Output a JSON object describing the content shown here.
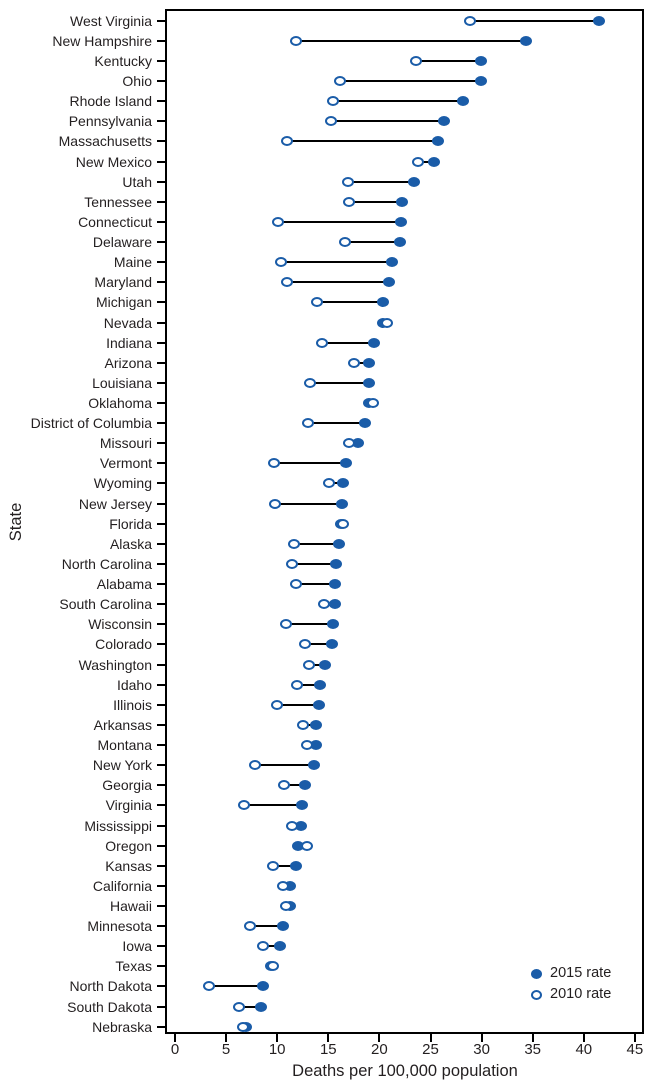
{
  "figure": {
    "x_axis_label": "Deaths per 100,000 population",
    "y_axis_label": "State",
    "x_ticks": [
      0,
      5,
      10,
      15,
      20,
      25,
      30,
      35,
      40,
      45
    ]
  },
  "legend": {
    "filled_label": "2015 rate",
    "open_label": "2010 rate"
  },
  "colors": {
    "marker_blue": "#1a5ca8",
    "connector_black": "#000000",
    "text": "#231f20"
  },
  "chart_data": {
    "type": "scatter",
    "subtype": "dumbbell",
    "title": "",
    "xlabel": "Deaths per 100,000 population",
    "ylabel": "State",
    "xlim": [
      0,
      45
    ],
    "grid": false,
    "legend_position": "bottom-right",
    "categories": [
      "West Virginia",
      "New Hampshire",
      "Kentucky",
      "Ohio",
      "Rhode Island",
      "Pennsylvania",
      "Massachusetts",
      "New Mexico",
      "Utah",
      "Tennessee",
      "Connecticut",
      "Delaware",
      "Maine",
      "Maryland",
      "Michigan",
      "Nevada",
      "Indiana",
      "Arizona",
      "Louisiana",
      "Oklahoma",
      "District of Columbia",
      "Missouri",
      "Vermont",
      "Wyoming",
      "New Jersey",
      "Florida",
      "Alaska",
      "North Carolina",
      "Alabama",
      "South Carolina",
      "Wisconsin",
      "Colorado",
      "Washington",
      "Idaho",
      "Illinois",
      "Arkansas",
      "Montana",
      "New York",
      "Georgia",
      "Virginia",
      "Mississippi",
      "Oregon",
      "Kansas",
      "California",
      "Hawaii",
      "Minnesota",
      "Iowa",
      "Texas",
      "North Dakota",
      "South Dakota",
      "Nebraska"
    ],
    "series": [
      {
        "name": "2015 rate",
        "marker": "filled",
        "values": [
          41.5,
          34.3,
          29.9,
          29.9,
          28.2,
          26.3,
          25.7,
          25.3,
          23.4,
          22.2,
          22.1,
          22.0,
          21.2,
          20.9,
          20.4,
          20.4,
          19.5,
          19.0,
          19.0,
          19.0,
          18.6,
          17.9,
          16.7,
          16.4,
          16.3,
          16.2,
          16.0,
          15.8,
          15.7,
          15.7,
          15.5,
          15.4,
          14.7,
          14.2,
          14.1,
          13.8,
          13.8,
          13.6,
          12.7,
          12.4,
          12.3,
          12.0,
          11.8,
          11.3,
          11.3,
          10.6,
          10.3,
          9.4,
          8.6,
          8.4,
          6.9
        ]
      },
      {
        "name": "2010 rate",
        "marker": "open",
        "values": [
          28.9,
          11.8,
          23.6,
          16.1,
          15.5,
          15.3,
          11.0,
          23.8,
          16.9,
          17.0,
          10.1,
          16.6,
          10.4,
          11.0,
          13.9,
          20.7,
          14.4,
          17.5,
          13.2,
          19.4,
          13.0,
          17.0,
          9.7,
          15.1,
          9.8,
          16.4,
          11.6,
          11.4,
          11.8,
          14.6,
          10.9,
          12.7,
          13.1,
          11.9,
          10.0,
          12.5,
          12.9,
          7.8,
          10.7,
          6.8,
          11.4,
          12.9,
          9.6,
          10.6,
          10.9,
          7.3,
          8.6,
          9.6,
          3.3,
          6.3,
          6.7
        ]
      }
    ]
  }
}
